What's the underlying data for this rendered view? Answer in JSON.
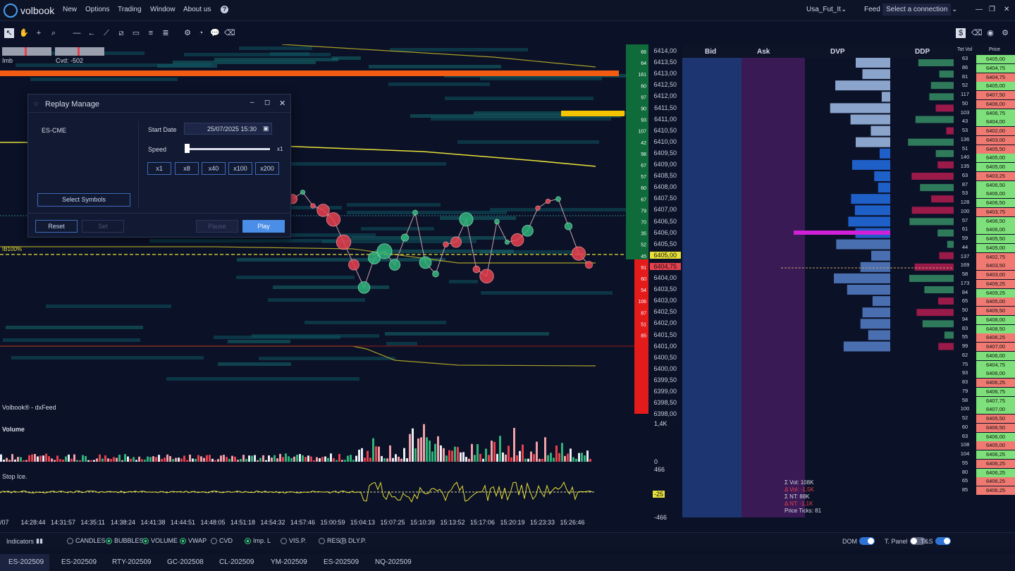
{
  "app": {
    "name": "volbook"
  },
  "menu": [
    "New",
    "Options",
    "Trading",
    "Window",
    "About us"
  ],
  "header": {
    "account": "Usa_Fut_It",
    "feed_label": "Feed",
    "connection": "Select a connection"
  },
  "chart": {
    "imb": "Imb",
    "cvd": "Cvd: -502",
    "ib": "IB100%",
    "watermark": "Volbook® - dxFeed",
    "volume_label": "Volume",
    "stop_label": "Stop Ice.",
    "vol_max": "1,4K",
    "vol_min": "0",
    "stop_max": "466",
    "stop_cur": "-25",
    "stop_min": "-466"
  },
  "time_labels": [
    "/07",
    "14:28:44",
    "14:31:57",
    "14:35:11",
    "14:38:24",
    "14:41:38",
    "14:44:51",
    "14:48:05",
    "14:51:18",
    "14:54:32",
    "14:57:46",
    "15:00:59",
    "15:04:13",
    "15:07:25",
    "15:10:39",
    "15:13:52",
    "15:17:06",
    "15:20:19",
    "15:23:33",
    "15:26:46"
  ],
  "prices": [
    "6414,00",
    "6413,50",
    "6413,00",
    "6412,50",
    "6412,00",
    "6411,50",
    "6411,00",
    "6410,50",
    "6410,00",
    "6409,50",
    "6409,00",
    "6408,50",
    "6408,00",
    "6407,50",
    "6407,00",
    "6406,50",
    "6406,00",
    "6405,50",
    "6405,00",
    "6404,75",
    "6404,00",
    "6403,50",
    "6403,00",
    "6402,50",
    "6402,00",
    "6401,50",
    "6401,00",
    "6400,50",
    "6400,00",
    "6399,50",
    "6399,00",
    "6398,50",
    "6398,00"
  ],
  "right_counts": [
    "66",
    "64",
    "161",
    "60",
    "97",
    "90",
    "93",
    "107",
    "42",
    "98",
    "67",
    "57",
    "60",
    "67",
    "79",
    "70",
    "35",
    "52",
    "45",
    "91",
    "60",
    "54",
    "106",
    "87",
    "51",
    "85"
  ],
  "dialog": {
    "title": "Replay Manage",
    "symbol": "ES-CME",
    "start_label": "Start Date",
    "start_value": "25/07/2025 15:30",
    "speed_label": "Speed",
    "speed_value": "x1",
    "speeds": [
      "x1",
      "x8",
      "x40",
      "x100",
      "x200"
    ],
    "select_symbols": "Select Symbols",
    "reset": "Reset",
    "set": "Set",
    "pause": "Pause",
    "play": "Play"
  },
  "dom": {
    "headers": [
      "Bid",
      "Ask",
      "DVP",
      "DDP"
    ],
    "stats": [
      "Σ Vol: 108K",
      "Δ Vol: -1,5K",
      "Σ NT: 88K",
      "Δ NT: -1,1K",
      "Price Ticks: 81"
    ]
  },
  "ladder": {
    "headers": [
      "Tot Vol",
      "Price"
    ],
    "tv": [
      "63",
      "86",
      "81",
      "52",
      "117",
      "50",
      "103",
      "43",
      "53",
      "136",
      "51",
      "140",
      "135",
      "63",
      "87",
      "53",
      "128",
      "100",
      "57",
      "61",
      "59",
      "44",
      "137",
      "169",
      "58",
      "173",
      "84",
      "65",
      "50",
      "94",
      "83",
      "55",
      "99",
      "62",
      "75",
      "93",
      "83",
      "79",
      "58",
      "100",
      "52",
      "60",
      "63",
      "108",
      "104",
      "55",
      "80",
      "65",
      "85"
    ],
    "pr": [
      "6405,00",
      "6404,75",
      "6404,75",
      "6405,00",
      "6407,50",
      "6406,00",
      "6406,75",
      "6404,00",
      "6402,00",
      "6403,00",
      "6405,50",
      "6405,00",
      "6405,00",
      "6403,25",
      "6406,50",
      "6406,00",
      "6406,50",
      "6403,75",
      "6406,50",
      "6406,00",
      "6405,50",
      "6405,00",
      "6402,75",
      "6403,50",
      "6403,00",
      "6409,25",
      "6409,25",
      "6405,00",
      "6409,50",
      "6408,00",
      "6408,50",
      "6406,25",
      "6407,00",
      "6406,00",
      "6404,75",
      "6406,00",
      "6406,25",
      "6406,75",
      "6407,75",
      "6407,00",
      "6405,50",
      "6406,50",
      "6406,00",
      "6405,00",
      "6406,25",
      "6406,25",
      "6406,25",
      "6406,25",
      "6406,25"
    ],
    "col": [
      "g",
      "g",
      "r",
      "g",
      "r",
      "r",
      "g",
      "g",
      "r",
      "r",
      "r",
      "g",
      "g",
      "r",
      "g",
      "g",
      "g",
      "r",
      "g",
      "g",
      "g",
      "g",
      "r",
      "r",
      "r",
      "r",
      "g",
      "r",
      "r",
      "g",
      "g",
      "r",
      "r",
      "g",
      "g",
      "g",
      "r",
      "g",
      "g",
      "g",
      "r",
      "r",
      "g",
      "r",
      "g",
      "r",
      "g",
      "r",
      "r"
    ]
  },
  "status": {
    "indicators": "Indicators",
    "options": [
      {
        "label": "CANDLES",
        "on": false
      },
      {
        "label": "BUBBLES",
        "on": true
      },
      {
        "label": "VOLUME",
        "on": true
      },
      {
        "label": "VWAP",
        "on": true
      },
      {
        "label": "CVD",
        "on": false
      },
      {
        "label": "Imp. L",
        "on": true
      },
      {
        "label": "VIS.P.",
        "on": false
      },
      {
        "label": "RES.P.",
        "on": false
      },
      {
        "label": "DLY.P.",
        "on": false
      }
    ],
    "dom": "DOM",
    "tpanel": "T. Panel",
    "ts": "T&S"
  },
  "tabs": [
    "ES-202509",
    "ES-202509",
    "RTY-202509",
    "GC-202508",
    "CL-202509",
    "YM-202509",
    "ES-202509",
    "NQ-202509"
  ],
  "colors": {
    "bg": "#0b1126",
    "bid": "#1d3570",
    "ask": "#3a1a55",
    "bull": "#2fb37a",
    "bear": "#e8414e",
    "vwap": "#e8e13a",
    "accent": "#2e73d8"
  },
  "chart_data": {
    "type": "scatter",
    "series": [
      {
        "values": [
          6407.5,
          6407.8,
          6407.2,
          6407.0,
          6406.6,
          6405.6,
          6404.6,
          6403.6,
          6404.9,
          6405.2,
          6404.6,
          6405.8,
          6406.9,
          6404.7,
          6404.2,
          6405.5,
          6405.6,
          6406.6,
          6404.4,
          6404.1,
          6406.5,
          6405.6,
          6405.7,
          6406.1,
          6407.1,
          6407.4,
          6407.5,
          6406.3,
          6405.1,
          6404.6
        ]
      }
    ]
  }
}
